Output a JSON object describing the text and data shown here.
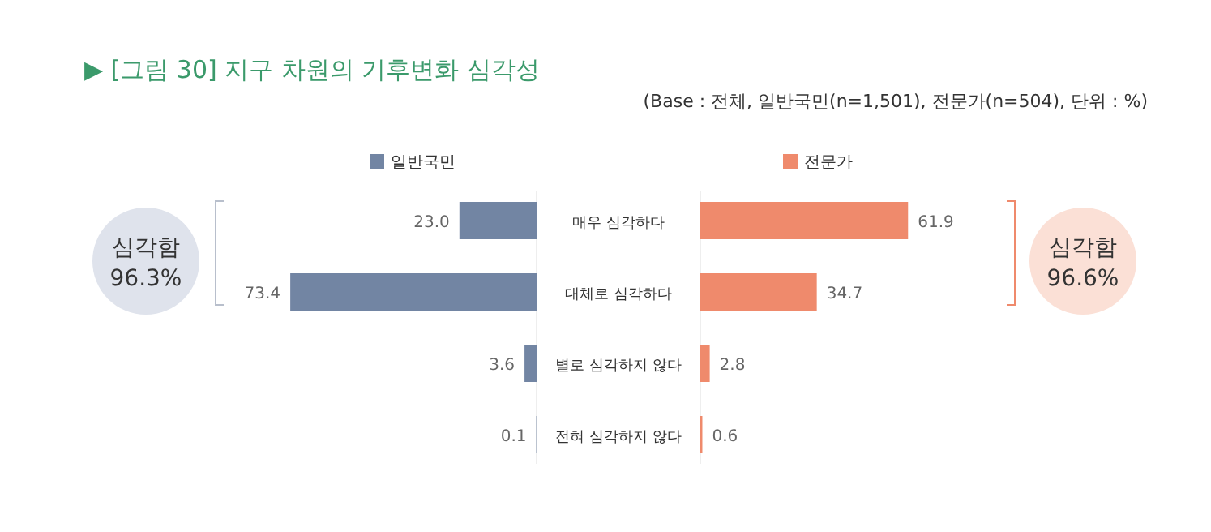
{
  "chart_data": [
    {
      "type": "bar",
      "orientation": "horizontal",
      "title": "▶ [그림 30] 지구 차원의 기후변화 심각성",
      "subtitle": "(Base : 전체, 일반국민(n=1,501), 전문가(n=504), 단위 : %)",
      "categories": [
        "매우 심각하다",
        "대체로 심각하다",
        "별로 심각하지 않다",
        "전혀 심각하지 않다"
      ],
      "series": [
        {
          "name": "일반국민",
          "color": "#7285a3",
          "values": [
            23.0,
            73.4,
            3.6,
            0.1
          ],
          "value_labels": [
            "23.0",
            "73.4",
            "3.6",
            "0.1"
          ]
        }
      ],
      "legend": "top",
      "annotations": [
        "심각함\n96.3%"
      ]
    },
    {
      "type": "bar",
      "orientation": "horizontal",
      "categories": [
        null,
        null,
        null,
        null
      ],
      "series": [
        {
          "name": "전문가",
          "color": "#ef8a6c",
          "values": [
            61.9,
            34.7,
            2.8,
            0.6
          ],
          "value_labels": [
            "61.9",
            "34.7",
            "2.8",
            "0.6"
          ]
        }
      ],
      "legend": "top",
      "annotations": [
        "심각함\n96.6%"
      ]
    }
  ]
}
